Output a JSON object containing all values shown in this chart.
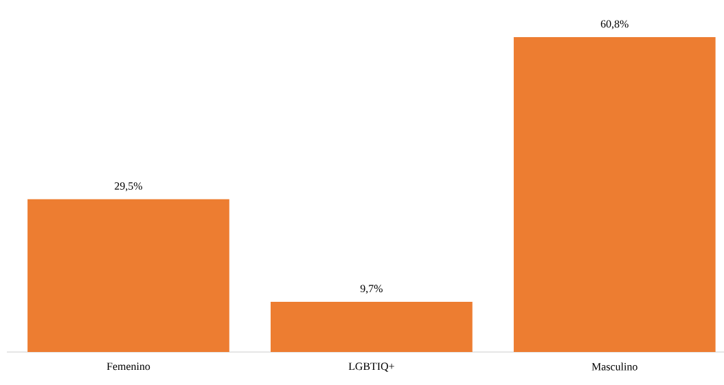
{
  "chart_data": {
    "type": "bar",
    "categories": [
      "Femenino",
      "LGBTIQ+",
      "Masculino"
    ],
    "values": [
      29.5,
      9.7,
      60.8
    ],
    "value_labels": [
      "29,5%",
      "9,7%",
      "60,8%"
    ],
    "color": "#ed7d31"
  }
}
